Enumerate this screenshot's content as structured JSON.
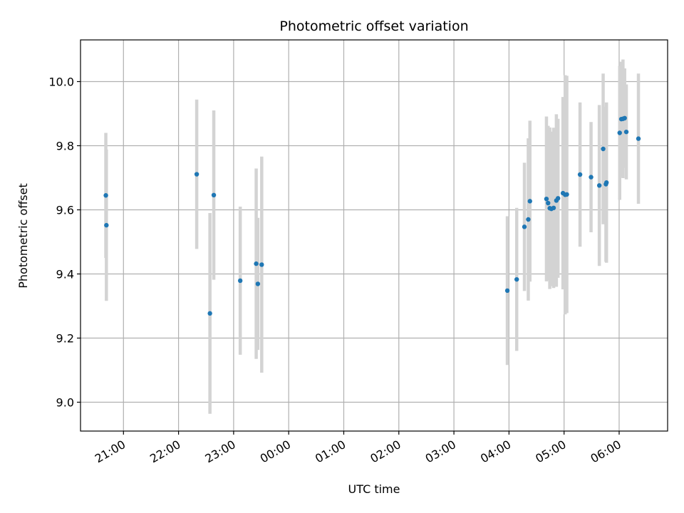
{
  "chart_data": {
    "type": "scatter",
    "title": "Photometric offset variation",
    "xlabel": "UTC time",
    "ylabel": "Photometric offset",
    "x_unit": "hours since 21:00 UTC",
    "xlim": [
      -0.78,
      9.88
    ],
    "ylim": [
      8.91,
      10.13
    ],
    "x_ticks": [
      0,
      1,
      2,
      3,
      4,
      5,
      6,
      7,
      8,
      9
    ],
    "x_tick_labels": [
      "21:00",
      "22:00",
      "23:00",
      "00:00",
      "01:00",
      "02:00",
      "03:00",
      "04:00",
      "05:00",
      "06:00"
    ],
    "y_ticks": [
      9.0,
      9.2,
      9.4,
      9.6,
      9.8,
      10.0
    ],
    "y_tick_labels": [
      "9.0",
      "9.2",
      "9.4",
      "9.6",
      "9.8",
      "10.0"
    ],
    "grid": true,
    "point_color": "#1f77b4",
    "errorbar_color": "#d3d3d3",
    "points": [
      {
        "x": -0.32,
        "y": 9.645,
        "err": 0.195
      },
      {
        "x": -0.31,
        "y": 9.552,
        "err": 0.236
      },
      {
        "x": 1.33,
        "y": 9.711,
        "err": 0.233
      },
      {
        "x": 1.57,
        "y": 9.277,
        "err": 0.313
      },
      {
        "x": 1.64,
        "y": 9.646,
        "err": 0.264
      },
      {
        "x": 2.12,
        "y": 9.379,
        "err": 0.231
      },
      {
        "x": 2.41,
        "y": 9.432,
        "err": 0.297
      },
      {
        "x": 2.44,
        "y": 9.369,
        "err": 0.206
      },
      {
        "x": 2.51,
        "y": 9.429,
        "err": 0.337
      },
      {
        "x": 6.97,
        "y": 9.348,
        "err": 0.232
      },
      {
        "x": 7.14,
        "y": 9.383,
        "err": 0.223
      },
      {
        "x": 7.28,
        "y": 9.547,
        "err": 0.2
      },
      {
        "x": 7.35,
        "y": 9.57,
        "err": 0.253
      },
      {
        "x": 7.38,
        "y": 9.627,
        "err": 0.251
      },
      {
        "x": 7.68,
        "y": 9.634,
        "err": 0.257
      },
      {
        "x": 7.71,
        "y": 9.621,
        "err": 0.241
      },
      {
        "x": 7.74,
        "y": 9.605,
        "err": 0.252
      },
      {
        "x": 7.77,
        "y": 9.603,
        "err": 0.241
      },
      {
        "x": 7.81,
        "y": 9.606,
        "err": 0.25
      },
      {
        "x": 7.86,
        "y": 9.629,
        "err": 0.269
      },
      {
        "x": 7.89,
        "y": 9.636,
        "err": 0.248
      },
      {
        "x": 7.98,
        "y": 9.652,
        "err": 0.3
      },
      {
        "x": 8.02,
        "y": 9.647,
        "err": 0.373
      },
      {
        "x": 8.05,
        "y": 9.648,
        "err": 0.37
      },
      {
        "x": 8.29,
        "y": 9.71,
        "err": 0.225
      },
      {
        "x": 8.49,
        "y": 9.702,
        "err": 0.172
      },
      {
        "x": 8.64,
        "y": 9.676,
        "err": 0.251
      },
      {
        "x": 8.71,
        "y": 9.79,
        "err": 0.235
      },
      {
        "x": 8.76,
        "y": 9.68,
        "err": 0.242
      },
      {
        "x": 8.77,
        "y": 9.685,
        "err": 0.25
      },
      {
        "x": 9.01,
        "y": 9.84,
        "err": 0.209
      },
      {
        "x": 9.04,
        "y": 9.883,
        "err": 0.179
      },
      {
        "x": 9.07,
        "y": 9.884,
        "err": 0.185
      },
      {
        "x": 9.1,
        "y": 9.886,
        "err": 0.155
      },
      {
        "x": 9.13,
        "y": 9.843,
        "err": 0.148
      },
      {
        "x": 9.35,
        "y": 9.822,
        "err": 0.203
      }
    ]
  }
}
